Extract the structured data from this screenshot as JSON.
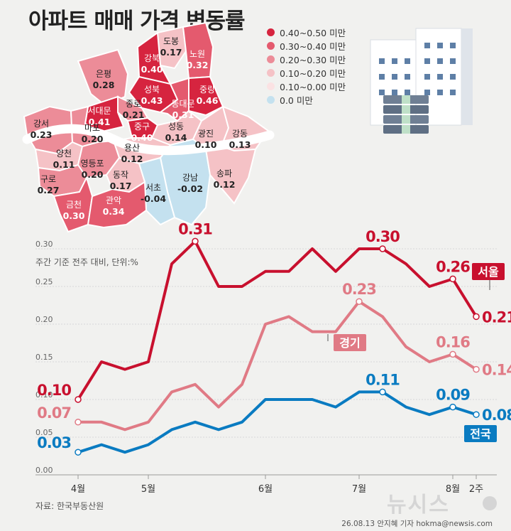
{
  "title": "아파트 매매 가격 변동률",
  "legend": [
    {
      "label": "0.40~0.50 미만",
      "color": "#d6243f"
    },
    {
      "label": "0.30~0.40 미만",
      "color": "#e45a6e"
    },
    {
      "label": "0.20~0.30 미만",
      "color": "#ec8c98"
    },
    {
      "label": "0.10~0.20 미만",
      "color": "#f5c2c6"
    },
    {
      "label": "0.10~0.00 미만",
      "color": "#fbe2e3"
    },
    {
      "label": "0.0 미만",
      "color": "#c4e1ef"
    }
  ],
  "districts": [
    {
      "name": "도봉",
      "value": "0.17"
    },
    {
      "name": "노원",
      "value": "0.32"
    },
    {
      "name": "강북",
      "value": "0.40"
    },
    {
      "name": "은평",
      "value": "0.28"
    },
    {
      "name": "성북",
      "value": "0.43"
    },
    {
      "name": "중랑",
      "value": "0.46"
    },
    {
      "name": "종로",
      "value": "0.21"
    },
    {
      "name": "동대문",
      "value": "0.31"
    },
    {
      "name": "서대문",
      "value": "0.41"
    },
    {
      "name": "중구",
      "value": "0.40"
    },
    {
      "name": "강서",
      "value": "0.23"
    },
    {
      "name": "마포",
      "value": "0.20"
    },
    {
      "name": "성동",
      "value": "0.14"
    },
    {
      "name": "광진",
      "value": "0.10"
    },
    {
      "name": "강동",
      "value": "0.13"
    },
    {
      "name": "양천",
      "value": "0.11"
    },
    {
      "name": "용산",
      "value": "0.12"
    },
    {
      "name": "영등포",
      "value": "0.20"
    },
    {
      "name": "구로",
      "value": "0.27"
    },
    {
      "name": "동작",
      "value": "0.17"
    },
    {
      "name": "강남",
      "value": "-0.02"
    },
    {
      "name": "서초",
      "value": "-0.04"
    },
    {
      "name": "송파",
      "value": "0.12"
    },
    {
      "name": "금천",
      "value": "0.30"
    },
    {
      "name": "관악",
      "value": "0.34"
    }
  ],
  "chart_data": {
    "type": "line",
    "ylabel": "주간 기준 전주 대비, 단위:%",
    "ylim": [
      0,
      0.3
    ],
    "yticks": [
      "0.00",
      "0.05",
      "0.10",
      "0.15",
      "0.20",
      "0.25",
      "0.30"
    ],
    "x_tick_labels": [
      "4월",
      "5월",
      "6월",
      "7월",
      "8월",
      "2주"
    ],
    "series": [
      {
        "name": "서울",
        "color": "#c8102e",
        "values": [
          0.1,
          0.15,
          0.14,
          0.15,
          0.28,
          0.31,
          0.25,
          0.25,
          0.27,
          0.27,
          0.3,
          0.27,
          0.3,
          0.3,
          0.28,
          0.25,
          0.26,
          0.21
        ]
      },
      {
        "name": "경기",
        "color": "#e07a85",
        "values": [
          0.07,
          0.07,
          0.06,
          0.07,
          0.11,
          0.12,
          0.09,
          0.12,
          0.2,
          0.21,
          0.19,
          0.19,
          0.23,
          0.21,
          0.17,
          0.15,
          0.16,
          0.14
        ]
      },
      {
        "name": "전국",
        "color": "#0a7bc1",
        "values": [
          0.03,
          0.04,
          0.03,
          0.04,
          0.06,
          0.07,
          0.06,
          0.07,
          0.1,
          0.1,
          0.1,
          0.09,
          0.11,
          0.11,
          0.09,
          0.08,
          0.09,
          0.08
        ]
      }
    ],
    "data_labels": [
      {
        "series": 0,
        "index": 0,
        "text": "0.10"
      },
      {
        "series": 0,
        "index": 5,
        "text": "0.31"
      },
      {
        "series": 0,
        "index": 13,
        "text": "0.30"
      },
      {
        "series": 0,
        "index": 16,
        "text": "0.26"
      },
      {
        "series": 0,
        "index": 17,
        "text": "0.21"
      },
      {
        "series": 1,
        "index": 0,
        "text": "0.07"
      },
      {
        "series": 1,
        "index": 12,
        "text": "0.23"
      },
      {
        "series": 1,
        "index": 16,
        "text": "0.16"
      },
      {
        "series": 1,
        "index": 17,
        "text": "0.14"
      },
      {
        "series": 2,
        "index": 0,
        "text": "0.03"
      },
      {
        "series": 2,
        "index": 13,
        "text": "0.11"
      },
      {
        "series": 2,
        "index": 16,
        "text": "0.09"
      },
      {
        "series": 2,
        "index": 17,
        "text": "0.08"
      }
    ]
  },
  "source": "자료: 한국부동산원",
  "credit": "26.08.13 안지혜 기자 hokma@newsis.com",
  "watermark": "뉴시스"
}
